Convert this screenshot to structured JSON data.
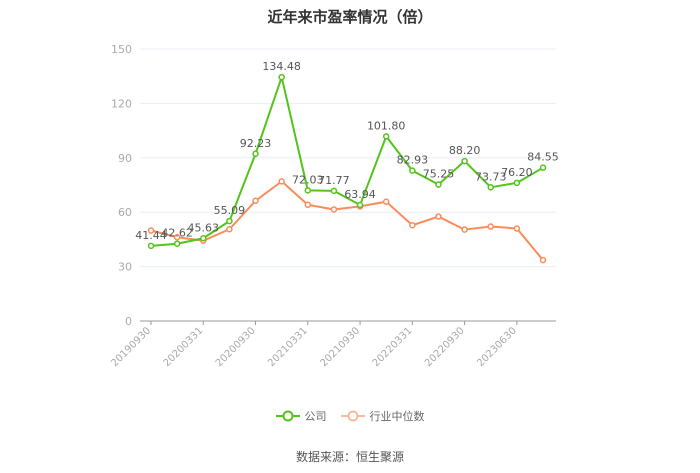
{
  "title": "近年来市盈率情况（倍）",
  "source": "数据来源：恒生聚源",
  "colors": {
    "company": "#52c41a",
    "industry": "#fa8c5a",
    "grid": "#e8eef5",
    "axis": "#999999",
    "tick_label": "#aaaaaa",
    "data_label": "#555555"
  },
  "legend": [
    {
      "name": "公司",
      "color": "#52c41a"
    },
    {
      "name": "行业中位数",
      "color": "#f9b99a"
    }
  ],
  "chart_data": {
    "type": "line",
    "title": "近年来市盈率情况（倍）",
    "xlabel": "",
    "ylabel": "",
    "ylim": [
      0,
      150
    ],
    "yticks": [
      0,
      30,
      60,
      90,
      120,
      150
    ],
    "grid": true,
    "legend_position": "bottom",
    "x_tick_labels": [
      "20190930",
      "20200331",
      "20200930",
      "20210331",
      "20210930",
      "20220331",
      "20220930",
      "20230630"
    ],
    "x_tick_label_indices": [
      0,
      2,
      4,
      6,
      8,
      10,
      12,
      14
    ],
    "point_count": 16,
    "series": [
      {
        "name": "公司",
        "values": [
          41.44,
          42.62,
          45.63,
          55.09,
          92.23,
          134.48,
          72.03,
          71.77,
          63.94,
          101.8,
          82.93,
          75.25,
          88.2,
          73.73,
          76.2,
          84.55
        ],
        "labels": [
          "41.44",
          "42.62",
          "45.63",
          "55.09",
          "92.23",
          "134.48",
          "72.03",
          "71.77",
          "63.94",
          "101.80",
          "82.93",
          "75.25",
          "88.20",
          "73.73",
          "76.20",
          "84.55"
        ],
        "show_labels": true
      },
      {
        "name": "行业中位数",
        "values": [
          49.9,
          46.2,
          44.3,
          50.6,
          66.3,
          77.0,
          64.1,
          61.5,
          63.2,
          65.8,
          52.8,
          57.6,
          50.4,
          52.1,
          51.0,
          33.6
        ],
        "show_labels": false
      }
    ]
  }
}
